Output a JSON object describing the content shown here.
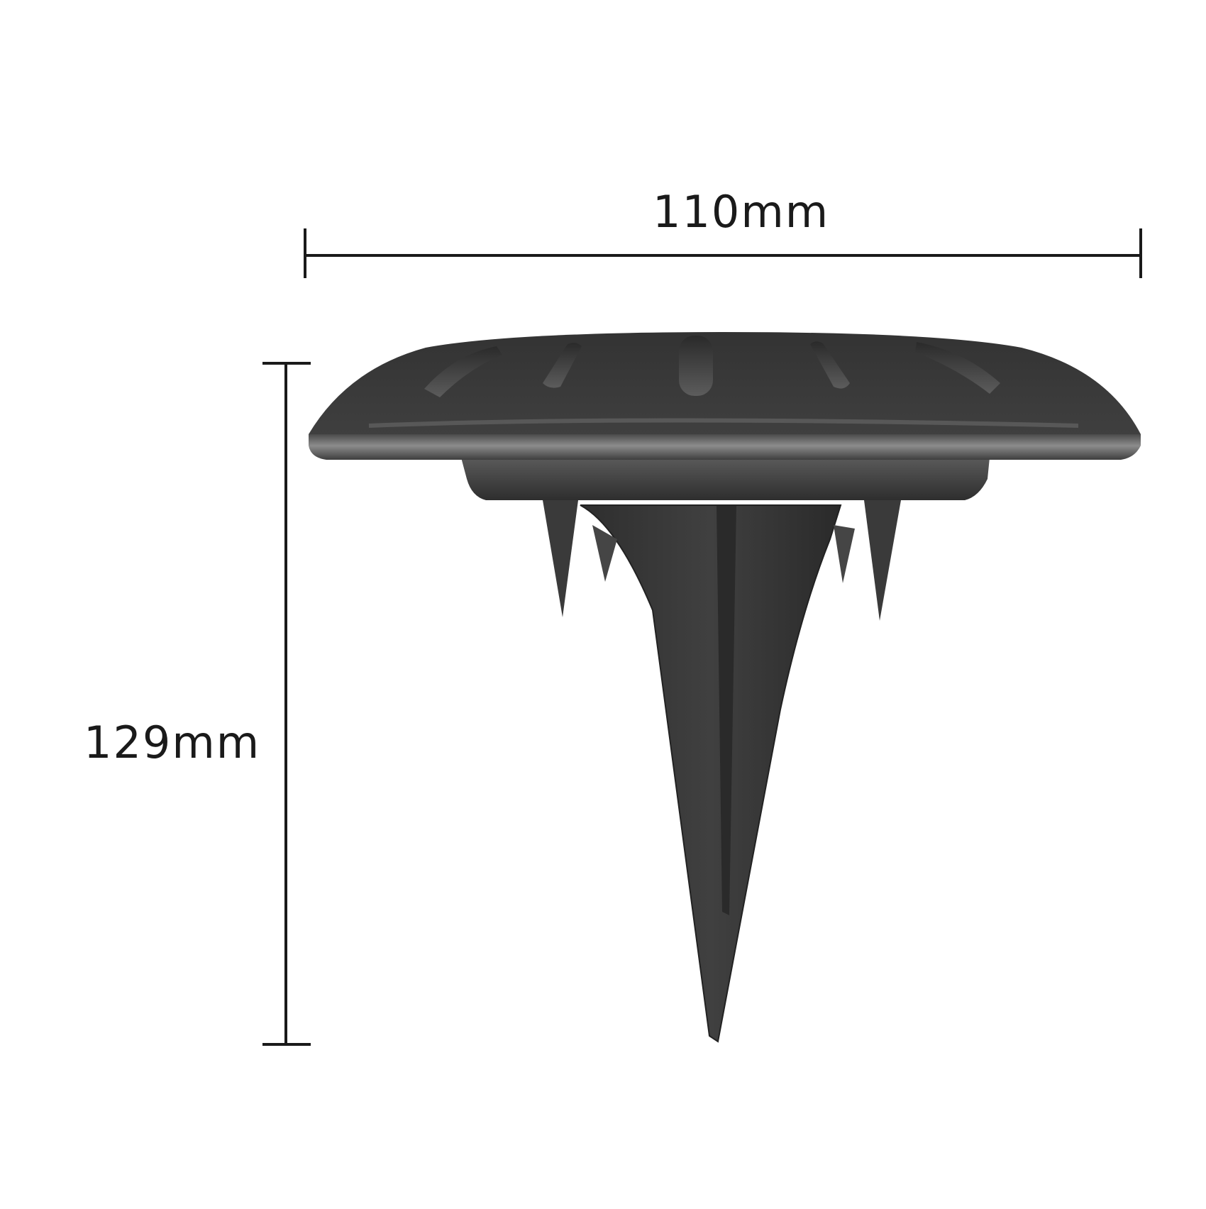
{
  "dimensions": {
    "width_label": "110mm",
    "height_label": "129mm"
  },
  "product": {
    "body_color": "#3a3a3a",
    "highlight_color": "#8a8a8a",
    "dimension_line_color": "#1a1a1a"
  }
}
